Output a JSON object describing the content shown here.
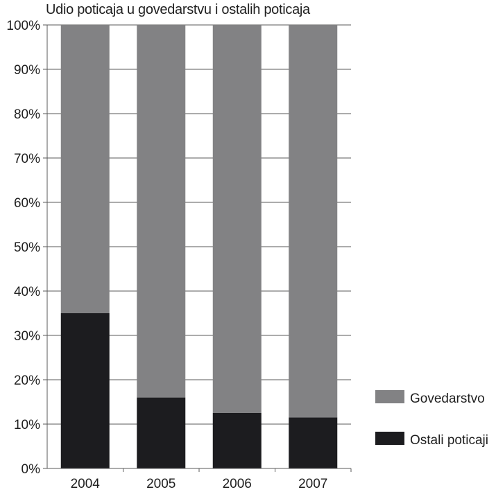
{
  "chart_data": {
    "type": "bar",
    "stacked": true,
    "title": "Udio poticaja u govedarstvu i ostalih poticaja",
    "xlabel": "",
    "ylabel": "",
    "categories": [
      "2004",
      "2005",
      "2006",
      "2007"
    ],
    "y_ticks": [
      "0%",
      "10%",
      "20%",
      "30%",
      "40%",
      "50%",
      "60%",
      "70%",
      "80%",
      "90%",
      "100%"
    ],
    "ylim": [
      0,
      100
    ],
    "grid": true,
    "legend_position": "bottom-right",
    "series": [
      {
        "name": "Ostali poticaji",
        "values": [
          35,
          16,
          12.5,
          11.5
        ],
        "color": "#1c1c1f"
      },
      {
        "name": "Govedarstvo",
        "values": [
          65,
          84,
          87.5,
          88.5
        ],
        "color": "#828284"
      }
    ],
    "legend_order": [
      "Govedarstvo",
      "Ostali poticaji"
    ]
  }
}
